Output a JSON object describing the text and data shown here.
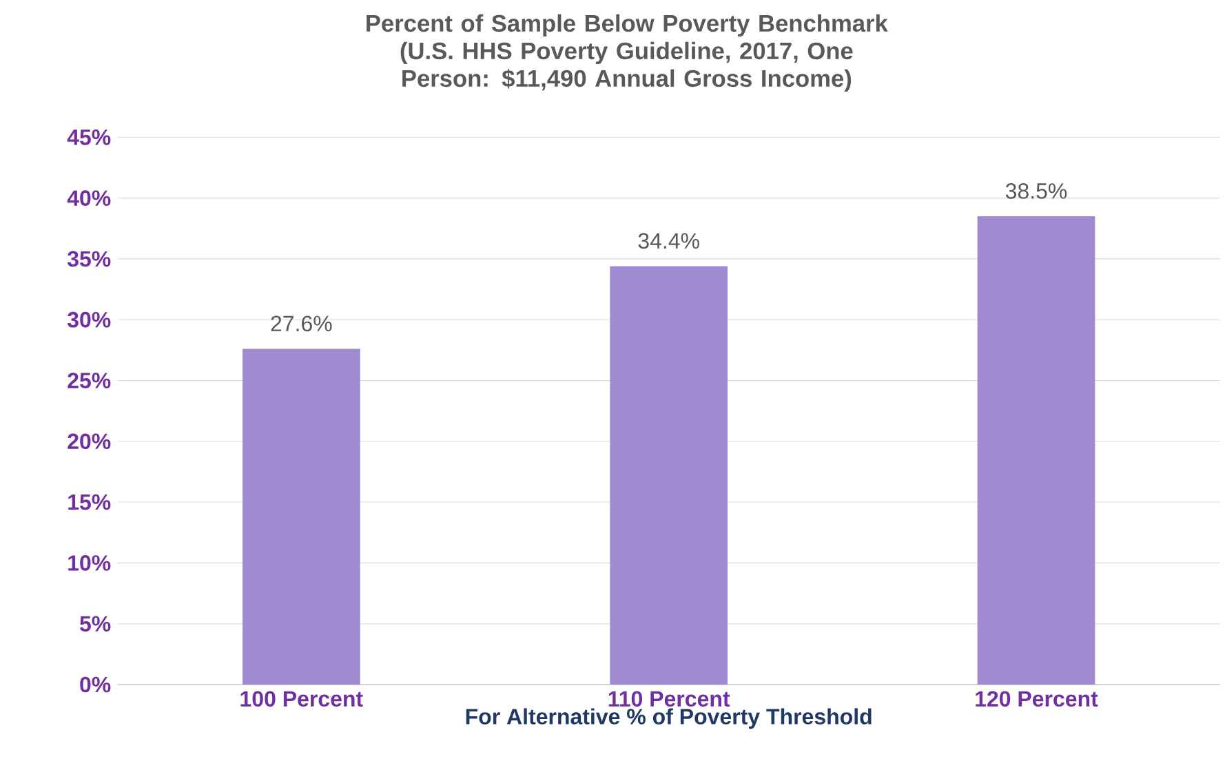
{
  "chart_data": {
    "type": "bar",
    "title": "Percent of Sample Below Poverty Benchmark",
    "subtitle": "(U.S. HHS Poverty Guideline, 2017, One Person: $11,490 Annual Gross Income)",
    "xlabel": "For Alternative % of Poverty Threshold",
    "categories": [
      "100 Percent",
      "110 Percent",
      "120 Percent"
    ],
    "values": [
      27.6,
      34.4,
      38.5
    ],
    "value_labels": [
      "27.6%",
      "34.4%",
      "38.5%"
    ],
    "color": "#9f8bd0",
    "ylim": [
      0,
      45
    ],
    "yticks": [
      {
        "value": 0,
        "label": "0%"
      },
      {
        "value": 5,
        "label": "5%"
      },
      {
        "value": 10,
        "label": "10%"
      },
      {
        "value": 15,
        "label": "15%"
      },
      {
        "value": 20,
        "label": "20%"
      },
      {
        "value": 25,
        "label": "25%"
      },
      {
        "value": 30,
        "label": "30%"
      },
      {
        "value": 35,
        "label": "35%"
      },
      {
        "value": 40,
        "label": "40%"
      },
      {
        "value": 45,
        "label": "45%"
      }
    ],
    "grid": "y"
  }
}
